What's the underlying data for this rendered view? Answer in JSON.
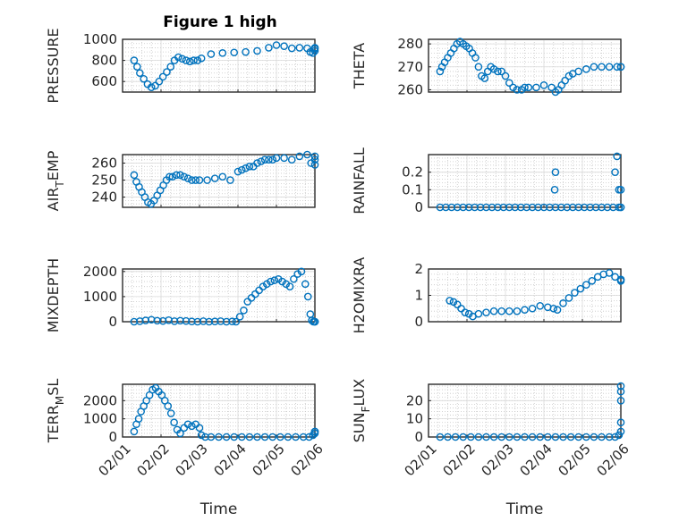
{
  "figure": {
    "title": "Figure 1 high",
    "accent": "#0072BD"
  },
  "chart_data": [
    {
      "type": "scatter",
      "id": "pressure",
      "ylabel": "PRESSURE",
      "ylabel_sub": "",
      "ylabel_rest": "",
      "title": "Figure 1 high",
      "xlabel": "",
      "xlim": [
        0,
        5
      ],
      "ylim": [
        500,
        1000
      ],
      "yticks": [
        600,
        800,
        1000
      ],
      "ytick_labels": [
        "600",
        "800",
        "1000"
      ],
      "x": [
        0.3,
        0.38,
        0.45,
        0.55,
        0.65,
        0.75,
        0.85,
        0.95,
        1.05,
        1.15,
        1.25,
        1.35,
        1.45,
        1.55,
        1.65,
        1.75,
        1.85,
        1.95,
        2.05,
        2.3,
        2.6,
        2.9,
        3.2,
        3.5,
        3.8,
        4.0,
        4.2,
        4.4,
        4.6,
        4.8,
        4.88,
        4.95,
        5.05,
        5.15,
        5.25
      ],
      "y": [
        800,
        740,
        680,
        625,
        575,
        545,
        560,
        600,
        645,
        690,
        740,
        800,
        830,
        815,
        800,
        790,
        800,
        800,
        820,
        860,
        870,
        875,
        880,
        890,
        920,
        945,
        935,
        915,
        920,
        915,
        880,
        870,
        890,
        910,
        920
      ]
    },
    {
      "type": "scatter",
      "id": "theta",
      "ylabel": "THETA",
      "ylabel_sub": "",
      "ylabel_rest": "",
      "xlim": [
        0,
        5
      ],
      "ylim": [
        259,
        282
      ],
      "yticks": [
        260,
        270,
        280
      ],
      "ytick_labels": [
        "260",
        "270",
        "280"
      ],
      "x": [
        0.3,
        0.35,
        0.42,
        0.5,
        0.58,
        0.66,
        0.74,
        0.82,
        0.9,
        0.98,
        1.06,
        1.14,
        1.22,
        1.3,
        1.38,
        1.46,
        1.54,
        1.62,
        1.7,
        1.8,
        1.9,
        2.0,
        2.1,
        2.2,
        2.3,
        2.42,
        2.5,
        2.6,
        2.8,
        3.0,
        3.2,
        3.3,
        3.38,
        3.46,
        3.55,
        3.65,
        3.75,
        3.9,
        4.1,
        4.3,
        4.5,
        4.7,
        4.9,
        5.1,
        5.25
      ],
      "y": [
        268,
        270,
        272,
        274,
        276,
        278,
        280,
        281,
        280,
        279,
        278,
        276,
        274,
        270,
        266,
        265,
        268,
        270,
        269,
        268,
        268,
        266,
        263,
        261,
        260,
        260,
        261,
        261,
        261,
        262,
        261,
        259,
        260,
        262,
        264,
        266,
        267,
        268,
        269,
        270,
        270,
        270,
        270,
        270,
        270
      ]
    },
    {
      "type": "scatter",
      "id": "air_temp",
      "ylabel": "AIR",
      "ylabel_sub": "T",
      "ylabel_rest": "EMP",
      "xlim": [
        0,
        5
      ],
      "ylim": [
        234,
        265
      ],
      "yticks": [
        240,
        250,
        260
      ],
      "ytick_labels": [
        "240",
        "250",
        "260"
      ],
      "x": [
        0.3,
        0.36,
        0.43,
        0.5,
        0.58,
        0.66,
        0.74,
        0.82,
        0.9,
        0.98,
        1.06,
        1.14,
        1.22,
        1.3,
        1.4,
        1.5,
        1.6,
        1.7,
        1.8,
        1.9,
        2.0,
        2.2,
        2.4,
        2.6,
        2.8,
        3.0,
        3.1,
        3.2,
        3.3,
        3.4,
        3.5,
        3.6,
        3.7,
        3.8,
        3.9,
        4.0,
        4.2,
        4.4,
        4.6,
        4.8,
        4.9,
        5.0,
        5.1,
        5.25
      ],
      "y": [
        253,
        249,
        246,
        243,
        240,
        237,
        236,
        238,
        241,
        244,
        247,
        250,
        252,
        252,
        253,
        253,
        252,
        251,
        250,
        250,
        250,
        250,
        251,
        252,
        250,
        255,
        256,
        257,
        258,
        258,
        260,
        261,
        262,
        262,
        262,
        263,
        263,
        262,
        264,
        265,
        260,
        259,
        262,
        264
      ]
    },
    {
      "type": "scatter",
      "id": "rainfall",
      "ylabel": "RAINFALL",
      "ylabel_sub": "",
      "ylabel_rest": "",
      "xlim": [
        0,
        5
      ],
      "ylim": [
        0,
        0.3
      ],
      "yticks": [
        0,
        0.1,
        0.2
      ],
      "ytick_labels": [
        "0",
        "0.1",
        "0.2"
      ],
      "x": [
        0.3,
        0.45,
        0.6,
        0.75,
        0.9,
        1.05,
        1.2,
        1.35,
        1.5,
        1.65,
        1.8,
        1.95,
        2.1,
        2.25,
        2.4,
        2.55,
        2.7,
        2.85,
        3.0,
        3.15,
        3.3,
        3.45,
        3.6,
        3.75,
        3.9,
        4.05,
        4.2,
        4.35,
        4.5,
        4.65,
        4.8,
        4.95,
        5.1,
        5.25,
        3.28,
        3.3,
        4.85,
        4.9,
        4.95,
        5.0
      ],
      "y": [
        0,
        0,
        0,
        0,
        0,
        0,
        0,
        0,
        0,
        0,
        0,
        0,
        0,
        0,
        0,
        0,
        0,
        0,
        0,
        0,
        0,
        0,
        0,
        0,
        0,
        0,
        0,
        0,
        0,
        0,
        0,
        0,
        0,
        0,
        0.1,
        0.2,
        0.2,
        0.29,
        0.1,
        0.1
      ]
    },
    {
      "type": "scatter",
      "id": "mixdepth",
      "ylabel": "MIXDEPTH",
      "ylabel_sub": "",
      "ylabel_rest": "",
      "xlim": [
        0,
        5
      ],
      "ylim": [
        0,
        2100
      ],
      "yticks": [
        0,
        1000,
        2000
      ],
      "ytick_labels": [
        "0",
        "1000",
        "2000"
      ],
      "x": [
        0.3,
        0.45,
        0.6,
        0.75,
        0.9,
        1.05,
        1.2,
        1.35,
        1.5,
        1.65,
        1.8,
        1.95,
        2.1,
        2.25,
        2.4,
        2.55,
        2.7,
        2.85,
        2.95,
        3.05,
        3.15,
        3.25,
        3.35,
        3.45,
        3.55,
        3.65,
        3.75,
        3.85,
        3.95,
        4.05,
        4.15,
        4.25,
        4.35,
        4.45,
        4.55,
        4.65,
        4.75,
        4.82,
        4.88,
        4.92,
        4.96,
        5.0,
        5.1,
        5.25
      ],
      "y": [
        0,
        20,
        50,
        80,
        40,
        30,
        60,
        20,
        40,
        30,
        10,
        0,
        20,
        0,
        10,
        20,
        0,
        10,
        0,
        200,
        450,
        800,
        950,
        1100,
        1250,
        1400,
        1500,
        1600,
        1650,
        1700,
        1600,
        1500,
        1400,
        1700,
        1900,
        2000,
        1500,
        1000,
        300,
        50,
        0,
        0,
        0,
        0
      ]
    },
    {
      "type": "scatter",
      "id": "h2omixra",
      "ylabel": "H2OMIXRA",
      "ylabel_sub": "",
      "ylabel_rest": "",
      "xlim": [
        0,
        5
      ],
      "ylim": [
        0,
        2
      ],
      "yticks": [
        0,
        1,
        2
      ],
      "ytick_labels": [
        "0",
        "1",
        "2"
      ],
      "x": [
        0.55,
        0.65,
        0.75,
        0.85,
        0.95,
        1.05,
        1.15,
        1.3,
        1.5,
        1.7,
        1.9,
        2.1,
        2.3,
        2.5,
        2.7,
        2.9,
        3.1,
        3.25,
        3.35,
        3.5,
        3.65,
        3.8,
        3.95,
        4.1,
        4.25,
        4.4,
        4.55,
        4.7,
        4.85,
        5.0,
        5.15,
        5.25
      ],
      "y": [
        0.8,
        0.75,
        0.65,
        0.5,
        0.35,
        0.3,
        0.2,
        0.3,
        0.35,
        0.4,
        0.4,
        0.4,
        0.4,
        0.45,
        0.5,
        0.6,
        0.55,
        0.5,
        0.45,
        0.7,
        0.9,
        1.1,
        1.25,
        1.4,
        1.55,
        1.7,
        1.8,
        1.85,
        1.7,
        1.6,
        1.55,
        1.6
      ]
    },
    {
      "type": "scatter",
      "id": "terr_msl",
      "ylabel": "TERR",
      "ylabel_sub": "M",
      "ylabel_rest": "SL",
      "xlim": [
        0,
        5
      ],
      "ylim": [
        0,
        2900
      ],
      "yticks": [
        0,
        1000,
        2000
      ],
      "ytick_labels": [
        "0",
        "1000",
        "2000"
      ],
      "x": [
        0.3,
        0.36,
        0.42,
        0.48,
        0.55,
        0.62,
        0.7,
        0.78,
        0.86,
        0.94,
        1.02,
        1.1,
        1.18,
        1.26,
        1.34,
        1.42,
        1.5,
        1.6,
        1.7,
        1.8,
        1.9,
        2.0,
        2.05,
        2.15,
        2.3,
        2.5,
        2.7,
        2.9,
        3.1,
        3.3,
        3.5,
        3.7,
        3.9,
        4.1,
        4.3,
        4.5,
        4.7,
        4.85,
        4.95,
        5.05,
        5.15,
        5.25
      ],
      "y": [
        300,
        700,
        1000,
        1400,
        1700,
        2000,
        2300,
        2600,
        2700,
        2500,
        2300,
        2000,
        1700,
        1300,
        800,
        400,
        200,
        500,
        700,
        600,
        700,
        500,
        100,
        0,
        0,
        0,
        0,
        0,
        0,
        0,
        0,
        0,
        0,
        0,
        0,
        0,
        0,
        0,
        100,
        200,
        300,
        300
      ]
    },
    {
      "type": "scatter",
      "id": "sun_flux",
      "ylabel": "SUN",
      "ylabel_sub": "F",
      "ylabel_rest": "LUX",
      "xlim": [
        0,
        5
      ],
      "ylim": [
        0,
        29
      ],
      "yticks": [
        0,
        10,
        20
      ],
      "ytick_labels": [
        "0",
        "10",
        "20"
      ],
      "x": [
        0.3,
        0.5,
        0.7,
        0.9,
        1.1,
        1.3,
        1.5,
        1.7,
        1.9,
        2.1,
        2.3,
        2.5,
        2.7,
        2.9,
        3.1,
        3.3,
        3.5,
        3.7,
        3.9,
        4.1,
        4.3,
        4.5,
        4.7,
        4.85,
        4.95,
        5.05,
        5.1,
        5.15,
        5.2,
        5.25
      ],
      "y": [
        0,
        0,
        0,
        0,
        0,
        0,
        0,
        0,
        0,
        0,
        0,
        0,
        0,
        0,
        0,
        0,
        0,
        0,
        0,
        0,
        0,
        0,
        0,
        0,
        1,
        3,
        8,
        20,
        25,
        28
      ]
    }
  ],
  "shared_x": {
    "xtick_labels": [
      "02/01",
      "02/02",
      "02/03",
      "02/04",
      "02/05",
      "02/06"
    ],
    "xlabel": "Time"
  }
}
